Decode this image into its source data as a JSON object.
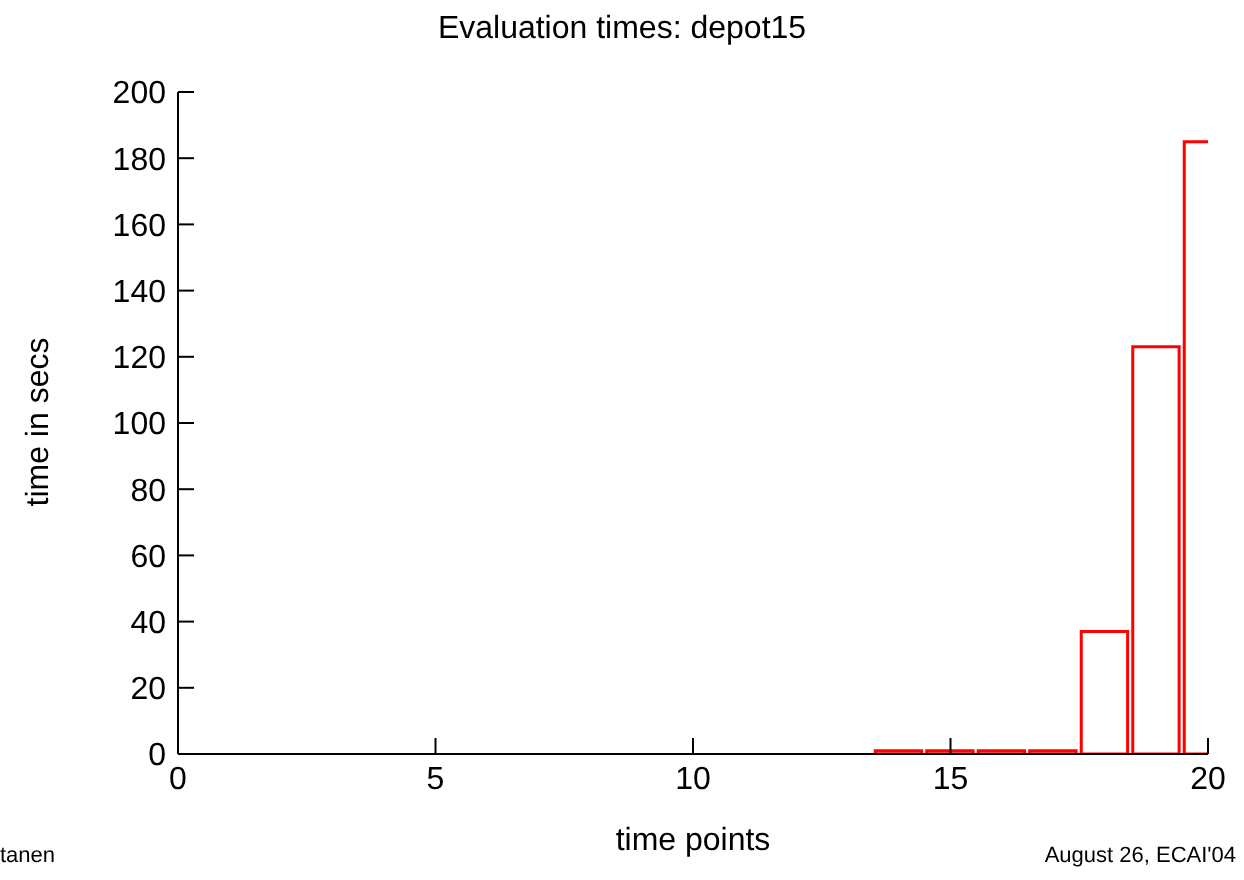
{
  "chart_data": {
    "type": "bar",
    "title": "Evaluation times: depot15",
    "xlabel": "time points",
    "ylabel": "time in secs",
    "x": [
      1,
      2,
      3,
      4,
      5,
      6,
      7,
      8,
      9,
      10,
      11,
      12,
      13,
      14,
      15,
      16,
      17,
      18,
      19,
      20
    ],
    "values": [
      0,
      0,
      0,
      0,
      0,
      0,
      0,
      0,
      0,
      0,
      0,
      0,
      0,
      1,
      1,
      1,
      1,
      37,
      123,
      185
    ],
    "color": "#ff0000",
    "xlim": [
      0,
      20
    ],
    "xticks": [
      0,
      5,
      10,
      15,
      20
    ],
    "ylim": [
      0,
      200
    ],
    "yticks": [
      0,
      20,
      40,
      60,
      80,
      100,
      120,
      140,
      160,
      180,
      200
    ],
    "grid": false,
    "legend": false,
    "annotations": [
      "tanen",
      "August 26, ECAI'04"
    ]
  }
}
